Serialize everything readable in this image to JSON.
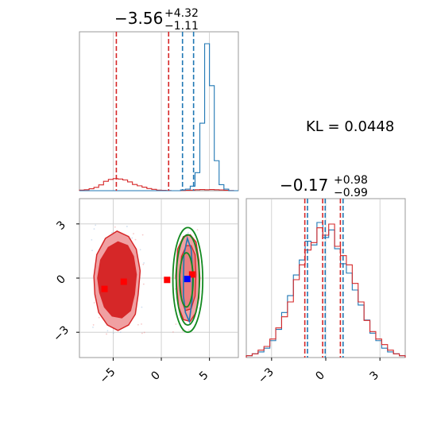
{
  "chart_data": {
    "type": "corner",
    "kl_label": "KL = 0.0448",
    "colors": {
      "red": "#d62728",
      "blue": "#1f77b4",
      "green": "#138a20",
      "red_fill": "#f0a0a2",
      "red_fill_dark": "#d62728"
    },
    "param0": {
      "title_value": "−3.56",
      "title_plus": "+4.32",
      "title_minus": "−1.11",
      "range": [
        -8.5,
        8.0
      ],
      "ticks": [
        -5,
        0,
        5
      ],
      "tick_labels": [
        "−5",
        "0",
        "5"
      ],
      "red_quantiles": [
        -4.67,
        -3.56,
        0.76
      ],
      "blue_quantiles": [
        2.2,
        2.75,
        3.35
      ],
      "red_hist": [
        0.03,
        0.05,
        0.1,
        0.17,
        0.3,
        0.48,
        0.58,
        0.62,
        0.6,
        0.55,
        0.45,
        0.32,
        0.25,
        0.18,
        0.11,
        0.07,
        0.03,
        0.02,
        0.01,
        0,
        0,
        0.01,
        0.02,
        0.03,
        0.05,
        0.06,
        0.05,
        0.06,
        0.05,
        0.04,
        0.02,
        0.01,
        0
      ],
      "blue_hist": [
        0,
        0,
        0,
        0,
        0,
        0,
        0,
        0,
        0,
        0,
        0,
        0,
        0,
        0,
        0,
        0,
        0,
        0,
        0,
        0,
        0,
        0.005,
        0.01,
        0.03,
        0.12,
        0.45,
        0.98,
        0.7,
        0.2,
        0.04,
        0.01,
        0,
        0
      ]
    },
    "param1": {
      "title_value": "−0.17",
      "title_plus": "+0.98",
      "title_minus": "−0.99",
      "range": [
        -4.4,
        4.4
      ],
      "ticks": [
        -3,
        0,
        3
      ],
      "tick_labels": [
        "−3",
        "0",
        "3"
      ],
      "red_quantiles": [
        -1.16,
        -0.17,
        0.81
      ],
      "blue_quantiles": [
        -1.1,
        -0.12,
        0.87
      ],
      "red_hist": [
        0.01,
        0.02,
        0.04,
        0.06,
        0.1,
        0.16,
        0.22,
        0.3,
        0.42,
        0.5,
        0.58,
        0.62,
        0.7,
        0.66,
        0.72,
        0.6,
        0.55,
        0.5,
        0.4,
        0.3,
        0.2,
        0.14,
        0.1,
        0.07,
        0.04,
        0.02,
        0.01
      ],
      "blue_hist": [
        0.01,
        0.02,
        0.03,
        0.05,
        0.09,
        0.15,
        0.24,
        0.33,
        0.44,
        0.52,
        0.62,
        0.6,
        0.72,
        0.64,
        0.68,
        0.58,
        0.5,
        0.45,
        0.36,
        0.28,
        0.2,
        0.13,
        0.09,
        0.05,
        0.03,
        0.02,
        0.01
      ]
    },
    "scatter_2d": {
      "red_markers": [
        [
          -5.9,
          -0.6
        ],
        [
          -3.9,
          -0.2
        ],
        [
          0.6,
          -0.1
        ],
        [
          3.2,
          0.2
        ]
      ],
      "blue_markers": [
        [
          2.7,
          -0.05
        ]
      ],
      "red_left_contour_outer": [
        [
          -7.0,
          0.1
        ],
        [
          -6.7,
          1.3
        ],
        [
          -5.8,
          2.2
        ],
        [
          -4.6,
          2.6
        ],
        [
          -3.4,
          2.3
        ],
        [
          -2.6,
          1.6
        ],
        [
          -2.2,
          0.4
        ],
        [
          -2.4,
          -0.9
        ],
        [
          -2.7,
          -2.0
        ],
        [
          -3.4,
          -2.6
        ],
        [
          -4.5,
          -2.9
        ],
        [
          -5.6,
          -2.6
        ],
        [
          -6.5,
          -1.9
        ],
        [
          -6.9,
          -0.9
        ]
      ],
      "red_left_contour_inner": [
        [
          -6.6,
          0.0
        ],
        [
          -6.3,
          1.0
        ],
        [
          -5.5,
          1.7
        ],
        [
          -4.5,
          2.0
        ],
        [
          -3.5,
          1.8
        ],
        [
          -2.9,
          1.2
        ],
        [
          -2.6,
          0.2
        ],
        [
          -2.8,
          -0.9
        ],
        [
          -3.2,
          -1.8
        ],
        [
          -4.1,
          -2.2
        ],
        [
          -5.1,
          -2.1
        ],
        [
          -5.9,
          -1.6
        ],
        [
          -6.4,
          -0.8
        ]
      ],
      "red_right_contour_outer": [
        [
          1.5,
          0.1
        ],
        [
          1.7,
          1.6
        ],
        [
          2.3,
          2.3
        ],
        [
          3.0,
          2.4
        ],
        [
          3.6,
          2.0
        ],
        [
          3.9,
          1.0
        ],
        [
          4.0,
          0.0
        ],
        [
          3.9,
          -1.1
        ],
        [
          3.6,
          -1.9
        ],
        [
          3.0,
          -2.4
        ],
        [
          2.3,
          -2.3
        ],
        [
          1.8,
          -1.6
        ]
      ],
      "red_right_contour_inner": [
        [
          1.9,
          0.1
        ],
        [
          2.1,
          1.2
        ],
        [
          2.6,
          1.8
        ],
        [
          3.1,
          1.8
        ],
        [
          3.5,
          1.3
        ],
        [
          3.6,
          0.2
        ],
        [
          3.5,
          -1.0
        ],
        [
          3.1,
          -1.7
        ],
        [
          2.5,
          -1.8
        ],
        [
          2.1,
          -1.2
        ]
      ],
      "green_ellipses": [
        [
          2.75,
          -0.1,
          1.2,
          2.5
        ],
        [
          2.75,
          -0.1,
          1.55,
          2.9
        ],
        [
          2.6,
          -0.1,
          0.7,
          1.5
        ]
      ],
      "blue_contour": [
        [
          2.3,
          -0.1
        ],
        [
          2.35,
          1.3
        ],
        [
          2.7,
          2.2
        ],
        [
          3.1,
          1.6
        ],
        [
          3.25,
          0.3
        ],
        [
          3.2,
          -1.2
        ],
        [
          2.9,
          -2.4
        ],
        [
          2.5,
          -1.9
        ],
        [
          2.3,
          -1.0
        ]
      ]
    }
  }
}
